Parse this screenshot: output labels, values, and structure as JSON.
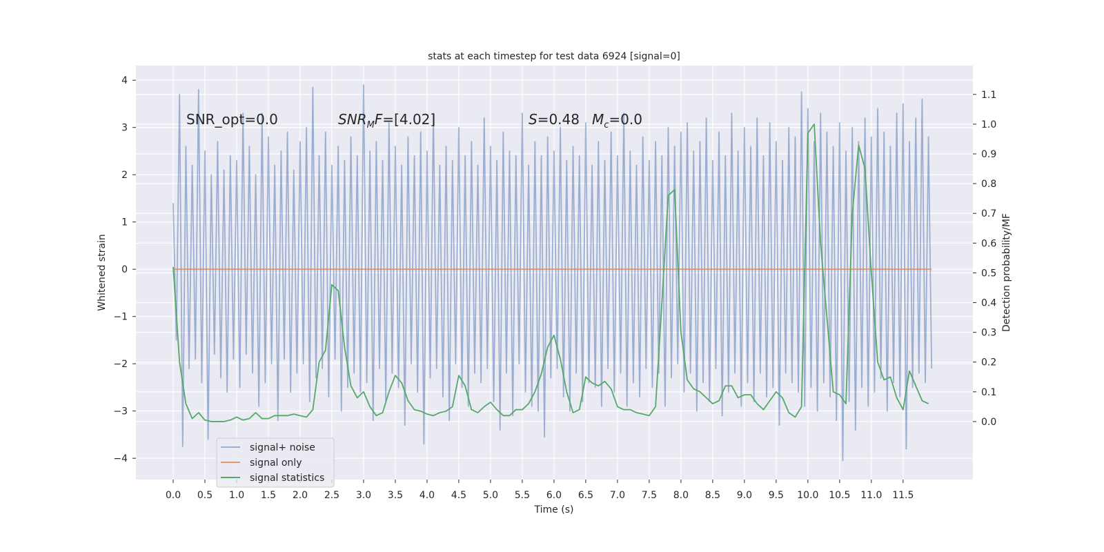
{
  "chart_data": {
    "type": "line",
    "title": "stats at each timestep for test data 6924 [signal=0]",
    "x_label": "Time (s)",
    "y_label": "Whitened strain",
    "y2_label": "Detection probability/MF",
    "xlim": [
      -0.587,
      12.6
    ],
    "ylim": [
      -4.45,
      4.31
    ],
    "y2lim": [
      -0.195,
      1.197
    ],
    "xticks": [
      {
        "value": 0,
        "label": "0.0"
      },
      0.5,
      {
        "value": 1,
        "label": "1.0"
      },
      1.5,
      {
        "value": 2,
        "label": "2.0"
      },
      2.5,
      {
        "value": 3,
        "label": "3.0"
      },
      3.5,
      {
        "value": 4,
        "label": "4.0"
      },
      4.5,
      {
        "value": 5,
        "label": "5.0"
      },
      5.5,
      {
        "value": 6,
        "label": "6.0"
      },
      6.5,
      {
        "value": 7,
        "label": "7.0"
      },
      7.5,
      {
        "value": 8,
        "label": "8.0"
      },
      8.5,
      {
        "value": 9,
        "label": "9.0"
      },
      9.5,
      {
        "value": 10,
        "label": "10.0"
      },
      10.5,
      {
        "value": 11,
        "label": "11.0"
      },
      11.5
    ],
    "yticks": [
      {
        "value": -4,
        "label": "−4"
      },
      {
        "value": -3,
        "label": "−3"
      },
      {
        "value": -2,
        "label": "−2"
      },
      {
        "value": -1,
        "label": "−1"
      },
      0,
      1,
      2,
      3,
      4
    ],
    "y2ticks": [
      {
        "value": 0,
        "label": "0.0"
      },
      0.1,
      0.2,
      0.3,
      0.4,
      0.5,
      0.6,
      0.7,
      0.8,
      0.9,
      {
        "value": 1,
        "label": "1.0"
      },
      1.1
    ],
    "grid": true,
    "legend": "lower left",
    "annotations": [
      {
        "parts": [
          {
            "text": "SNR_opt=0.0"
          }
        ]
      },
      {
        "parts": [
          {
            "text": "SNR",
            "italic": true
          },
          {
            "text": "M",
            "italic": true,
            "sub": true
          },
          {
            "text": "F",
            "italic": true
          },
          {
            "text": "=[4.02]"
          }
        ]
      },
      {
        "parts": [
          {
            "text": "S",
            "italic": true
          },
          {
            "text": "=0.48"
          }
        ]
      },
      {
        "parts": [
          {
            "text": "M",
            "italic": true
          },
          {
            "text": "c",
            "italic": true,
            "sub": true
          },
          {
            "text": "=0.0"
          }
        ]
      }
    ],
    "series": [
      {
        "name": "signal+ noise",
        "color": "#4c72b0",
        "opacity": 0.5,
        "x": [
          0,
          0.05,
          0.1,
          0.15,
          0.2,
          0.25,
          0.3,
          0.35,
          0.4,
          0.45,
          0.5,
          0.55,
          0.6,
          0.65,
          0.7,
          0.75,
          0.8,
          0.85,
          0.9,
          0.95,
          1,
          1.05,
          1.1,
          1.15,
          1.2,
          1.25,
          1.3,
          1.35,
          1.4,
          1.45,
          1.5,
          1.55,
          1.6,
          1.65,
          1.7,
          1.75,
          1.8,
          1.85,
          1.9,
          1.95,
          2,
          2.05,
          2.1,
          2.15,
          2.2,
          2.25,
          2.3,
          2.35,
          2.4,
          2.45,
          2.5,
          2.55,
          2.6,
          2.65,
          2.7,
          2.75,
          2.8,
          2.85,
          2.9,
          2.95,
          3,
          3.05,
          3.1,
          3.15,
          3.2,
          3.25,
          3.3,
          3.35,
          3.4,
          3.45,
          3.5,
          3.55,
          3.6,
          3.65,
          3.7,
          3.75,
          3.8,
          3.85,
          3.9,
          3.95,
          4,
          4.05,
          4.1,
          4.15,
          4.2,
          4.25,
          4.3,
          4.35,
          4.4,
          4.45,
          4.5,
          4.55,
          4.6,
          4.65,
          4.7,
          4.75,
          4.8,
          4.85,
          4.9,
          4.95,
          5,
          5.05,
          5.1,
          5.15,
          5.2,
          5.25,
          5.3,
          5.35,
          5.4,
          5.45,
          5.5,
          5.55,
          5.6,
          5.65,
          5.7,
          5.75,
          5.8,
          5.85,
          5.9,
          5.95,
          6,
          6.05,
          6.1,
          6.15,
          6.2,
          6.25,
          6.3,
          6.35,
          6.4,
          6.45,
          6.5,
          6.55,
          6.6,
          6.65,
          6.7,
          6.75,
          6.8,
          6.85,
          6.9,
          6.95,
          7,
          7.05,
          7.1,
          7.15,
          7.2,
          7.25,
          7.3,
          7.35,
          7.4,
          7.45,
          7.5,
          7.55,
          7.6,
          7.65,
          7.7,
          7.75,
          7.8,
          7.85,
          7.9,
          7.95,
          8,
          8.05,
          8.1,
          8.15,
          8.2,
          8.25,
          8.3,
          8.35,
          8.4,
          8.45,
          8.5,
          8.55,
          8.6,
          8.65,
          8.7,
          8.75,
          8.8,
          8.85,
          8.9,
          8.95,
          9,
          9.05,
          9.1,
          9.15,
          9.2,
          9.25,
          9.3,
          9.35,
          9.4,
          9.45,
          9.5,
          9.55,
          9.6,
          9.65,
          9.7,
          9.75,
          9.8,
          9.85,
          9.9,
          9.95,
          10,
          10.05,
          10.1,
          10.15,
          10.2,
          10.25,
          10.3,
          10.35,
          10.4,
          10.45,
          10.5,
          10.55,
          10.6,
          10.65,
          10.7,
          10.75,
          10.8,
          10.85,
          10.9,
          10.95,
          11,
          11.05,
          11.1,
          11.15,
          11.2,
          11.25,
          11.3,
          11.35,
          11.4,
          11.45,
          11.5,
          11.55,
          11.6,
          11.65,
          11.7,
          11.75,
          11.8,
          11.85,
          11.9,
          11.95
        ],
        "values": [
          1.4,
          -1.5,
          3.7,
          -3.75,
          2.6,
          -2.1,
          2.2,
          -1.9,
          3.8,
          -2.4,
          2.5,
          -3.6,
          2.0,
          -1.8,
          2.7,
          -2.3,
          2.1,
          -2.6,
          2.4,
          -1.9,
          2.3,
          -2.5,
          3.3,
          -1.8,
          2.6,
          -2.2,
          2.0,
          -2.9,
          3.3,
          -2.4,
          2.8,
          -2.0,
          2.2,
          -3.2,
          2.5,
          -1.9,
          2.9,
          -2.6,
          2.1,
          -2.2,
          2.7,
          -2.0,
          3.0,
          -2.8,
          3.85,
          -2.3,
          2.4,
          -2.1,
          2.9,
          -2.7,
          2.2,
          -1.9,
          2.6,
          -3.0,
          2.3,
          -2.5,
          2.8,
          -2.2,
          2.4,
          -2.6,
          3.9,
          -2.4,
          2.5,
          -3.2,
          2.7,
          -2.1,
          2.3,
          -2.8,
          3.1,
          -2.2,
          2.6,
          -2.5,
          2.2,
          -3.3,
          2.8,
          -2.0,
          2.4,
          -2.6,
          2.9,
          -3.7,
          2.5,
          -2.3,
          3.3,
          -2.1,
          2.2,
          -2.7,
          2.6,
          -3.2,
          2.3,
          -2.0,
          3.0,
          -2.5,
          2.4,
          -2.9,
          2.7,
          -2.2,
          2.2,
          -2.4,
          3.2,
          -2.1,
          2.6,
          -2.8,
          2.3,
          -3.4,
          2.9,
          -2.2,
          2.5,
          -3.1,
          2.4,
          -2.0,
          3.3,
          -2.6,
          2.2,
          -2.9,
          2.7,
          -3.0,
          2.4,
          -3.55,
          2.8,
          -2.3,
          2.5,
          -2.1,
          3.0,
          -2.7,
          2.3,
          -3.0,
          2.6,
          -2.2,
          2.4,
          -2.8,
          3.1,
          -2.4,
          2.2,
          -2.5,
          2.7,
          -2.9,
          2.3,
          -2.1,
          2.9,
          -2.6,
          2.4,
          -2.2,
          3.3,
          -2.9,
          2.5,
          -2.4,
          2.2,
          -2.7,
          2.8,
          -2.1,
          2.3,
          -2.5,
          2.7,
          -2.2,
          2.4,
          -2.9,
          3.0,
          -2.3,
          2.6,
          -2.0,
          2.9,
          -2.6,
          3.1,
          -2.2,
          2.5,
          -3.0,
          2.7,
          -2.4,
          3.2,
          -2.8,
          2.3,
          -2.1,
          2.9,
          -3.1,
          2.4,
          -2.6,
          3.3,
          -2.2,
          2.5,
          -2.9,
          3.0,
          -2.4,
          2.6,
          -2.8,
          3.2,
          -2.2,
          2.4,
          -2.7,
          3.1,
          -2.5,
          2.7,
          -3.3,
          2.3,
          -2.2,
          3.0,
          -2.4,
          2.8,
          -2.6,
          3.75,
          -2.9,
          3.4,
          -2.5,
          2.7,
          -3.0,
          3.3,
          -2.4,
          2.9,
          -2.7,
          2.6,
          -3.2,
          3.1,
          -4.05,
          2.5,
          -2.8,
          3.0,
          -3.4,
          2.7,
          -2.5,
          3.2,
          -2.9,
          2.8,
          -2.6,
          3.4,
          -2.3,
          2.9,
          -3.0,
          2.6,
          -2.4,
          3.3,
          -2.7,
          3.5,
          -3.8,
          2.7,
          -2.5,
          3.2,
          -2.2,
          3.6,
          -2.4,
          2.8,
          -2.1
        ]
      },
      {
        "name": "signal only",
        "color": "#dd8452",
        "opacity": 0.8,
        "x": [
          0,
          11.95
        ],
        "values": [
          0,
          0
        ]
      },
      {
        "name": "signal statistics",
        "color": "#55a868",
        "opacity": 1,
        "axis": "y2",
        "x": [
          0,
          0.1,
          0.2,
          0.3,
          0.4,
          0.5,
          0.6,
          0.7,
          0.8,
          0.9,
          1,
          1.1,
          1.2,
          1.3,
          1.4,
          1.5,
          1.6,
          1.7,
          1.8,
          1.9,
          2,
          2.1,
          2.2,
          2.3,
          2.4,
          2.5,
          2.6,
          2.7,
          2.8,
          2.9,
          3,
          3.1,
          3.2,
          3.3,
          3.4,
          3.5,
          3.6,
          3.7,
          3.8,
          3.9,
          4,
          4.1,
          4.2,
          4.3,
          4.4,
          4.5,
          4.6,
          4.7,
          4.8,
          4.9,
          5,
          5.1,
          5.2,
          5.3,
          5.4,
          5.5,
          5.6,
          5.7,
          5.8,
          5.9,
          6,
          6.1,
          6.2,
          6.3,
          6.4,
          6.5,
          6.6,
          6.7,
          6.8,
          6.9,
          7,
          7.1,
          7.2,
          7.3,
          7.4,
          7.5,
          7.6,
          7.7,
          7.8,
          7.9,
          8,
          8.1,
          8.2,
          8.3,
          8.4,
          8.5,
          8.6,
          8.7,
          8.8,
          8.9,
          9,
          9.1,
          9.2,
          9.3,
          9.4,
          9.5,
          9.6,
          9.7,
          9.8,
          9.9,
          10,
          10.1,
          10.2,
          10.3,
          10.4,
          10.5,
          10.6,
          10.7,
          10.8,
          10.9,
          11,
          11.1,
          11.2,
          11.3,
          11.4,
          11.5,
          11.6,
          11.7,
          11.8,
          11.9
        ],
        "values": [
          0.52,
          0.2,
          0.06,
          0.01,
          0.03,
          0.005,
          0.0,
          0.0,
          0.0,
          0.005,
          0.015,
          0.005,
          0.01,
          0.03,
          0.01,
          0.01,
          0.02,
          0.02,
          0.02,
          0.025,
          0.02,
          0.015,
          0.04,
          0.2,
          0.24,
          0.46,
          0.44,
          0.25,
          0.12,
          0.08,
          0.1,
          0.05,
          0.02,
          0.03,
          0.1,
          0.155,
          0.13,
          0.07,
          0.04,
          0.035,
          0.025,
          0.02,
          0.03,
          0.035,
          0.05,
          0.155,
          0.12,
          0.04,
          0.03,
          0.05,
          0.065,
          0.04,
          0.02,
          0.02,
          0.04,
          0.04,
          0.06,
          0.1,
          0.16,
          0.25,
          0.29,
          0.21,
          0.1,
          0.03,
          0.04,
          0.15,
          0.13,
          0.12,
          0.135,
          0.11,
          0.05,
          0.04,
          0.04,
          0.03,
          0.025,
          0.02,
          0.05,
          0.4,
          0.76,
          0.78,
          0.3,
          0.14,
          0.11,
          0.1,
          0.08,
          0.06,
          0.07,
          0.12,
          0.12,
          0.08,
          0.09,
          0.09,
          0.06,
          0.04,
          0.07,
          0.1,
          0.08,
          0.03,
          0.015,
          0.05,
          0.97,
          1.0,
          0.6,
          0.35,
          0.1,
          0.09,
          0.06,
          0.7,
          0.93,
          0.85,
          0.5,
          0.2,
          0.14,
          0.15,
          0.08,
          0.04,
          0.17,
          0.12,
          0.07,
          0.06
        ]
      }
    ]
  }
}
